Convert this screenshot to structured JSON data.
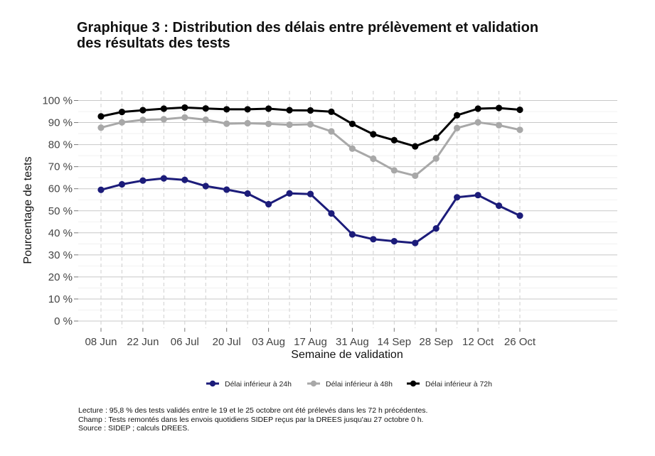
{
  "header": {
    "title_line1": "Graphique 3 : Distribution des délais entre prélèvement et validation",
    "title_line2": "des résultats des tests"
  },
  "chart_data": {
    "type": "line",
    "xlabel": "Semaine de validation",
    "ylabel": "Pourcentage de tests",
    "x_ticks": [
      "08 Jun",
      "22 Jun",
      "06 Jul",
      "20 Jul",
      "03 Aug",
      "17 Aug",
      "31 Aug",
      "14 Sep",
      "28 Sep",
      "12 Oct",
      "26 Oct"
    ],
    "y_ticks": [
      "0 %",
      "10 %",
      "20 %",
      "30 %",
      "40 %",
      "50 %",
      "60 %",
      "70 %",
      "80 %",
      "90 %",
      "100 %"
    ],
    "ylim": [
      0,
      100
    ],
    "grid": true,
    "legend_position": "bottom",
    "x": [
      "08 Jun",
      "15 Jun",
      "22 Jun",
      "29 Jun",
      "06 Jul",
      "13 Jul",
      "20 Jul",
      "27 Jul",
      "03 Aug",
      "10 Aug",
      "17 Aug",
      "24 Aug",
      "31 Aug",
      "07 Sep",
      "14 Sep",
      "21 Sep",
      "28 Sep",
      "05 Oct",
      "12 Oct",
      "19 Oct",
      "26 Oct"
    ],
    "series": [
      {
        "name": "Délai inférieur à 24h",
        "color": "#1c1c7a",
        "values": [
          59.5,
          62.0,
          63.7,
          64.7,
          64.0,
          61.2,
          59.6,
          57.8,
          53.0,
          57.9,
          57.6,
          48.8,
          39.3,
          37.1,
          36.2,
          35.4,
          42.0,
          56.1,
          57.1,
          52.3,
          47.8
        ]
      },
      {
        "name": "Délai inférieur à 48h",
        "color": "#a8a8a8",
        "values": [
          87.7,
          90.1,
          91.2,
          91.5,
          92.3,
          91.3,
          89.5,
          89.7,
          89.4,
          89.0,
          89.2,
          86.0,
          78.2,
          73.6,
          68.3,
          65.9,
          73.7,
          87.5,
          90.1,
          88.8,
          86.7
        ]
      },
      {
        "name": "Délai inférieur à 72h",
        "color": "#000000",
        "values": [
          92.8,
          94.8,
          95.6,
          96.3,
          96.8,
          96.4,
          96.0,
          96.0,
          96.3,
          95.6,
          95.5,
          94.9,
          89.4,
          84.7,
          82.0,
          79.2,
          83.1,
          93.3,
          96.3,
          96.6,
          95.8
        ]
      }
    ]
  },
  "notes": {
    "lecture": "Lecture :  95,8 % des tests validés entre le 19 et le 25 octobre ont été prélevés dans les 72 h précédentes.",
    "champ": "Champ : Tests remontés dans les envois quotidiens SIDEP reçus par la DREES jusqu'au 27 octobre 0 h.",
    "source": "Source : SIDEP ; calculs DREES."
  }
}
